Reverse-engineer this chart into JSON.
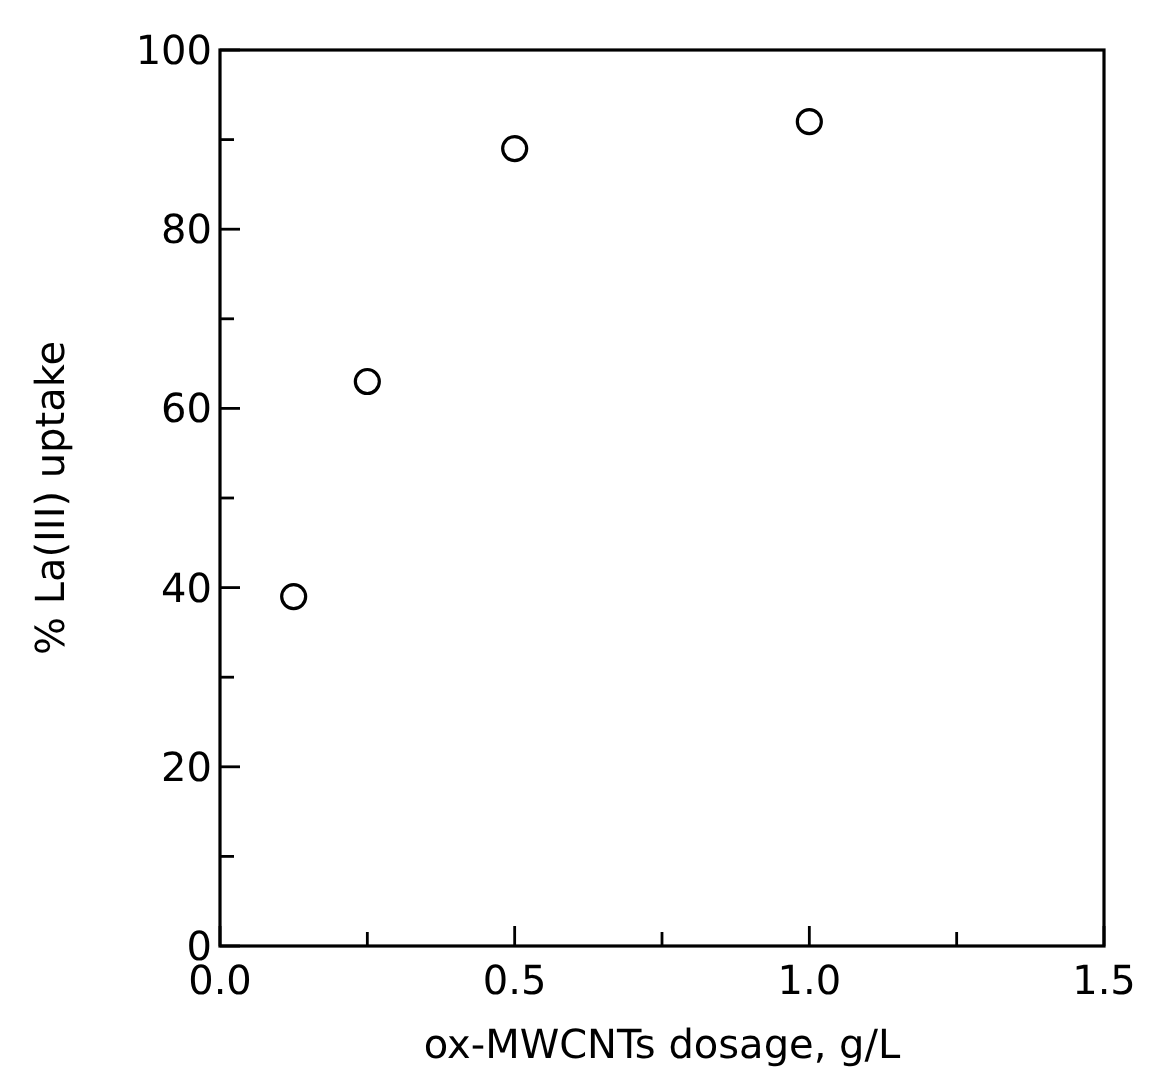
{
  "chart_data": {
    "type": "scatter",
    "xlabel": "ox-MWCNTs dosage, g/L",
    "ylabel": "% La(III) uptake",
    "x": [
      0.125,
      0.25,
      0.5,
      1.0
    ],
    "series": [
      {
        "color": "#000000",
        "values": [
          39,
          63,
          89,
          92
        ]
      }
    ],
    "marker": "circle",
    "grid": false,
    "xlim": [
      0,
      1.5
    ],
    "ylim": [
      0,
      100
    ],
    "xticks": [
      {
        "value": 0,
        "label": "0.0"
      },
      {
        "value": 0.25,
        "label": null
      },
      {
        "value": 0.5,
        "label": "0.5"
      },
      {
        "value": 0.75,
        "label": null
      },
      {
        "value": 1,
        "label": "1.0"
      },
      {
        "value": 1.25,
        "label": null
      },
      {
        "value": 1.5,
        "label": "1.5"
      }
    ],
    "yticks": [
      0,
      {
        "value": 10,
        "label": null
      },
      20,
      {
        "value": 30,
        "label": null
      },
      40,
      {
        "value": 50,
        "label": null
      },
      60,
      {
        "value": 70,
        "label": null
      },
      80,
      {
        "value": 90,
        "label": null
      },
      100
    ]
  }
}
